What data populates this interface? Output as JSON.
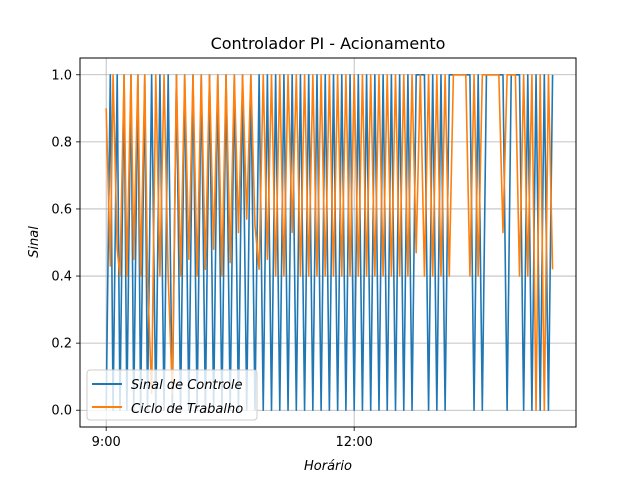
{
  "chart_data": {
    "type": "line",
    "title": "Controlador PI - Acionamento",
    "xlabel": "Horário",
    "ylabel": "Sinal",
    "x_ticks": [
      "9:00",
      "12:00"
    ],
    "y_ticks": [
      "0.0",
      "0.2",
      "0.4",
      "0.6",
      "0.8",
      "1.0"
    ],
    "ylim": [
      -0.05,
      1.05
    ],
    "xlim": [
      "8:41",
      "14:41"
    ],
    "grid": true,
    "legend_position": "lower-left",
    "series": [
      {
        "name": "Sinal de Controle",
        "color": "#1f77b4",
        "x": [
          "9:00",
          "9:03",
          "9:05",
          "9:08",
          "9:10",
          "9:13",
          "9:15",
          "9:18",
          "9:20",
          "9:23",
          "9:25",
          "9:28",
          "9:30",
          "9:33",
          "9:36",
          "9:39",
          "9:42",
          "9:45",
          "9:48",
          "9:51",
          "9:54",
          "9:57",
          "10:00",
          "10:03",
          "10:06",
          "10:09",
          "10:12",
          "10:15",
          "10:18",
          "10:21",
          "10:24",
          "10:27",
          "10:30",
          "10:33",
          "10:36",
          "10:39",
          "10:42",
          "10:45",
          "10:48",
          "10:51",
          "10:54",
          "10:57",
          "11:00",
          "11:03",
          "11:06",
          "11:09",
          "11:12",
          "11:15",
          "11:18",
          "11:21",
          "11:24",
          "11:27",
          "11:30",
          "11:33",
          "11:36",
          "11:39",
          "11:42",
          "11:45",
          "11:48",
          "11:51",
          "11:54",
          "11:57",
          "12:00",
          "12:03",
          "12:06",
          "12:09",
          "12:12",
          "12:15",
          "12:18",
          "12:21",
          "12:24",
          "12:27",
          "12:30",
          "12:33",
          "12:36",
          "12:39",
          "12:42",
          "12:45",
          "12:48",
          "12:51",
          "12:54",
          "12:57",
          "13:00",
          "13:03",
          "13:06",
          "13:09",
          "13:12",
          "13:15",
          "13:18",
          "13:21",
          "13:24",
          "13:27",
          "13:30",
          "13:33",
          "13:36",
          "13:39",
          "13:42",
          "13:45",
          "13:48",
          "13:51",
          "13:54",
          "13:57",
          "14:00",
          "14:03",
          "14:06",
          "14:09",
          "14:12",
          "14:15",
          "14:18",
          "14:21",
          "14:24"
        ],
        "values": [
          0,
          1,
          0,
          1,
          0,
          1,
          0,
          1,
          0,
          1,
          0,
          1,
          0,
          1,
          0,
          1,
          0,
          1,
          0,
          1,
          0,
          1,
          0,
          1,
          0,
          1,
          0,
          1,
          0,
          1,
          0,
          1,
          0,
          1,
          0,
          1,
          0,
          1,
          0,
          1,
          0,
          1,
          0,
          1,
          0,
          1,
          0,
          1,
          0,
          1,
          0,
          1,
          0,
          1,
          0,
          1,
          0,
          1,
          0,
          1,
          0,
          1,
          0,
          1,
          0,
          1,
          0,
          1,
          0,
          1,
          0,
          1,
          0,
          1,
          0,
          1,
          0,
          1,
          1,
          1,
          0,
          1,
          0,
          1,
          0,
          1,
          1,
          1,
          1,
          1,
          1,
          0,
          1,
          0,
          1,
          1,
          1,
          1,
          1,
          0,
          1,
          1,
          1,
          0,
          1,
          0,
          1,
          0,
          1,
          0,
          1
        ]
      },
      {
        "name": "Ciclo de Trabalho",
        "color": "#ff7f0e",
        "x": [
          "9:00",
          "9:03",
          "9:05",
          "9:08",
          "9:10",
          "9:13",
          "9:15",
          "9:18",
          "9:20",
          "9:23",
          "9:25",
          "9:28",
          "9:30",
          "9:33",
          "9:36",
          "9:39",
          "9:42",
          "9:45",
          "9:48",
          "9:51",
          "9:54",
          "9:57",
          "10:00",
          "10:03",
          "10:06",
          "10:09",
          "10:12",
          "10:15",
          "10:18",
          "10:21",
          "10:24",
          "10:27",
          "10:30",
          "10:33",
          "10:36",
          "10:39",
          "10:42",
          "10:45",
          "10:48",
          "10:51",
          "10:54",
          "10:57",
          "11:00",
          "11:03",
          "11:06",
          "11:09",
          "11:12",
          "11:15",
          "11:18",
          "11:21",
          "11:24",
          "11:27",
          "11:30",
          "11:33",
          "11:36",
          "11:39",
          "11:42",
          "11:45",
          "11:48",
          "11:51",
          "11:54",
          "11:57",
          "12:00",
          "12:03",
          "12:06",
          "12:09",
          "12:12",
          "12:15",
          "12:18",
          "12:21",
          "12:24",
          "12:27",
          "12:30",
          "12:33",
          "12:36",
          "12:39",
          "12:42",
          "12:45",
          "12:48",
          "12:51",
          "12:54",
          "12:57",
          "13:00",
          "13:03",
          "13:06",
          "13:09",
          "13:12",
          "13:15",
          "13:18",
          "13:21",
          "13:24",
          "13:27",
          "13:30",
          "13:33",
          "13:36",
          "13:39",
          "13:42",
          "13:45",
          "13:48",
          "13:51",
          "13:54",
          "13:57",
          "14:00",
          "14:03",
          "14:06",
          "14:09",
          "14:12",
          "14:15",
          "14:18",
          "14:21",
          "14:24"
        ],
        "values": [
          0.9,
          0.43,
          1,
          0.48,
          0.4,
          1,
          0.4,
          1,
          0.45,
          1,
          0.4,
          1,
          0.4,
          0.05,
          1,
          0.4,
          1,
          0.4,
          0.05,
          1,
          0.4,
          1,
          0.45,
          1,
          0.4,
          1,
          0.42,
          1,
          0.48,
          1,
          0.4,
          1,
          0.44,
          1,
          0.53,
          1,
          0.57,
          1,
          0.55,
          0.42,
          1,
          0.45,
          1,
          0.4,
          1,
          0.4,
          1,
          0.53,
          1,
          0.4,
          1,
          0.4,
          1,
          0.4,
          1,
          0.4,
          1,
          0.4,
          1,
          0.4,
          1,
          0.4,
          1,
          0.4,
          1,
          0.4,
          1,
          0.4,
          1,
          0.4,
          1,
          0.4,
          1,
          0.4,
          1,
          0.4,
          1,
          0.47,
          1,
          0.4,
          1,
          0.4,
          1,
          0.4,
          1,
          0.4,
          1,
          1,
          1,
          1,
          0.4,
          1,
          0.4,
          1,
          1,
          1,
          1,
          1,
          0.53,
          1,
          1,
          1,
          0.4,
          1,
          0.4,
          1,
          0,
          1,
          0,
          1,
          0.42
        ]
      }
    ]
  }
}
